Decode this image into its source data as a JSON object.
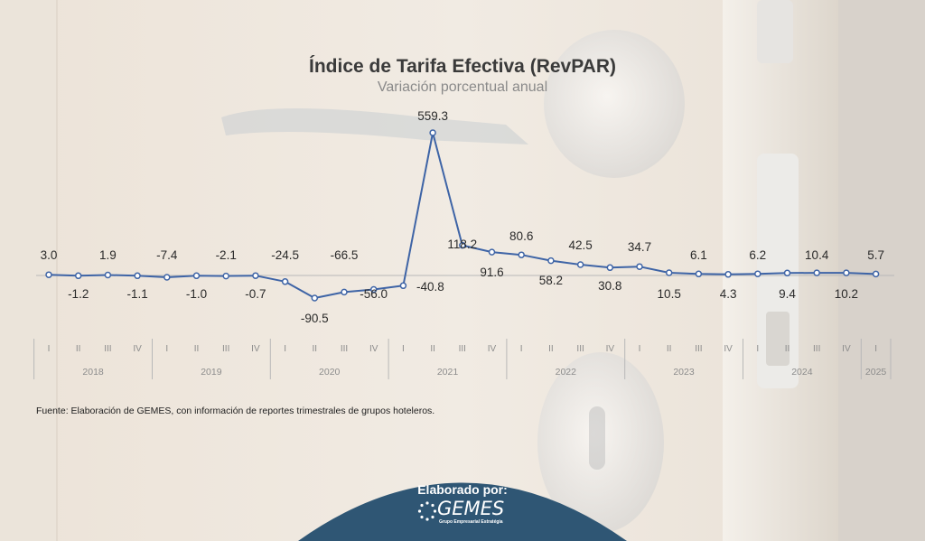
{
  "colors": {
    "line": "#3e64a6",
    "badge": "#2f5674",
    "axis": "#8c8c8c"
  },
  "badge": {
    "label": "Elaborado por:",
    "logo_text": "GEMES",
    "logo_tagline": "Grupo Empresarial Estratégia"
  },
  "source_note": "Fuente: Elaboración de GEMES, con información de reportes trimestrales de grupos hoteleros.",
  "chart_data": {
    "type": "line",
    "title": "Índice de Tarifa Efectiva (RevPAR)",
    "subtitle": "Variación porcentual anual",
    "xlabel": "",
    "ylabel": "",
    "grid": false,
    "legend": "none",
    "years": [
      "2018",
      "2019",
      "2020",
      "2021",
      "2022",
      "2023",
      "2024",
      "2025"
    ],
    "quarters": [
      "I",
      "II",
      "III",
      "IV",
      "I",
      "II",
      "III",
      "IV",
      "I",
      "II",
      "III",
      "IV",
      "I",
      "II",
      "III",
      "IV",
      "I",
      "II",
      "III",
      "IV",
      "I",
      "II",
      "III",
      "IV",
      "I",
      "II",
      "III",
      "IV",
      "I"
    ],
    "quarter_year": [
      "2018",
      "2018",
      "2018",
      "2018",
      "2019",
      "2019",
      "2019",
      "2019",
      "2020",
      "2020",
      "2020",
      "2020",
      "2021",
      "2021",
      "2021",
      "2021",
      "2022",
      "2022",
      "2022",
      "2022",
      "2023",
      "2023",
      "2023",
      "2023",
      "2024",
      "2024",
      "2024",
      "2024",
      "2025"
    ],
    "series": [
      {
        "values": [
          3.0,
          -1.2,
          1.9,
          -1.1,
          -7.4,
          -1.0,
          -2.1,
          -0.7,
          -24.5,
          -90.5,
          -66.5,
          -56.0,
          -40.8,
          559.3,
          118.2,
          91.6,
          80.6,
          58.2,
          42.5,
          30.8,
          34.7,
          10.5,
          6.1,
          4.3,
          6.2,
          9.4,
          10.4,
          10.2,
          5.7
        ]
      }
    ],
    "data_labels": [
      "3.0",
      "-1.2",
      "1.9",
      "-1.1",
      "-7.4",
      "-1.0",
      "-2.1",
      "-0.7",
      "-24.5",
      "-90.5",
      "-66.5",
      "-56.0",
      "-40.8",
      "559.3",
      "118.2",
      "91.6",
      "80.6",
      "58.2",
      "42.5",
      "30.8",
      "34.7",
      "10.5",
      "6.1",
      "4.3",
      "6.2",
      "9.4",
      "10.4",
      "10.2",
      "5.7"
    ]
  }
}
